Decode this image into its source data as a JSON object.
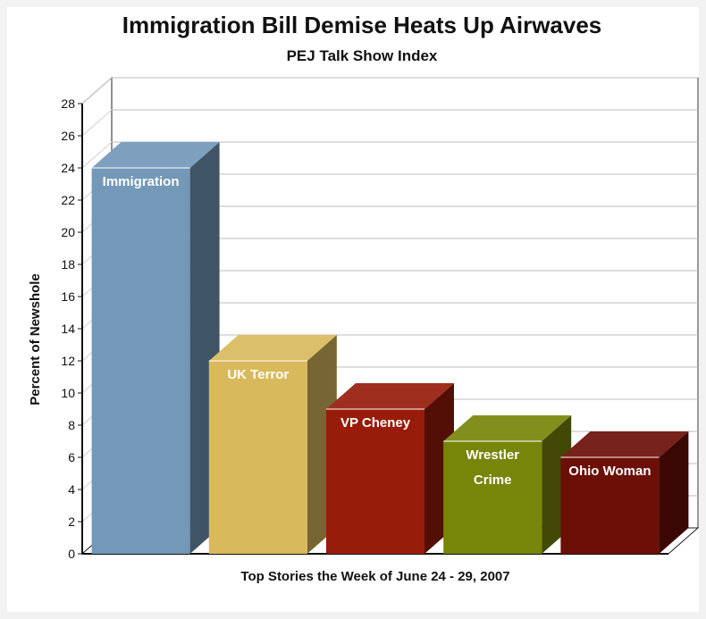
{
  "chart_data": {
    "type": "bar",
    "title": "Immigration Bill Demise Heats Up Airwaves",
    "subtitle": "PEJ Talk Show Index",
    "xlabel": "Top Stories the Week of June 24 - 29, 2007",
    "ylabel": "Percent of Newshole",
    "ylim": [
      0,
      28
    ],
    "yticks": [
      0,
      2,
      4,
      6,
      8,
      10,
      12,
      14,
      16,
      18,
      20,
      22,
      24,
      26,
      28
    ],
    "grid": true,
    "legend": "none",
    "three_d": true,
    "categories": [
      "Immigration",
      "UK Terror",
      "VP Cheney",
      "Wrestler Crime",
      "Ohio Woman"
    ],
    "category_label_lines": [
      [
        "Immigration"
      ],
      [
        "UK Terror"
      ],
      [
        "VP Cheney"
      ],
      [
        "Wrestler",
        "Crime"
      ],
      [
        "Ohio Woman"
      ]
    ],
    "values": [
      24,
      12,
      9,
      7,
      6
    ],
    "colors": [
      "#7398b8",
      "#d8b95c",
      "#971c0a",
      "#778509",
      "#6b0f07"
    ]
  }
}
